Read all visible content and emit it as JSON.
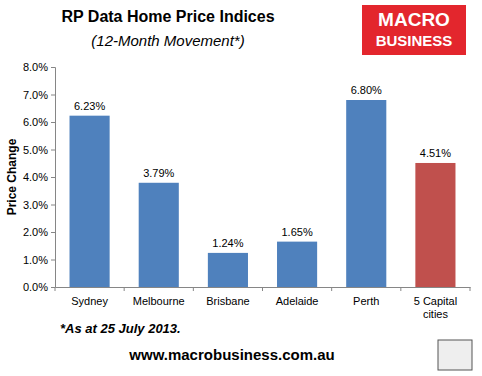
{
  "chart_data": {
    "type": "bar",
    "title": "RP Data Home Price Indices",
    "subtitle": "(12-Month Movement*)",
    "y_label": "Price Change",
    "categories": [
      "Sydney",
      "Melbourne",
      "Brisbane",
      "Adelaide",
      "Perth",
      "5 Capital cities"
    ],
    "values": [
      6.23,
      3.79,
      1.24,
      1.65,
      6.8,
      4.51
    ],
    "value_labels": [
      "6.23%",
      "3.79%",
      "1.24%",
      "1.65%",
      "6.80%",
      "4.51%"
    ],
    "colors": [
      "#4f81bd",
      "#4f81bd",
      "#4f81bd",
      "#4f81bd",
      "#4f81bd",
      "#c0504d"
    ],
    "ylim": [
      0,
      8
    ],
    "yticks": [
      {
        "value": 0,
        "label": "0.0%"
      },
      {
        "value": 1,
        "label": "1.0%"
      },
      {
        "value": 2,
        "label": "2.0%"
      },
      {
        "value": 3,
        "label": "3.0%"
      },
      {
        "value": 4,
        "label": "4.0%"
      },
      {
        "value": 5,
        "label": "5.0%"
      },
      {
        "value": 6,
        "label": "6.0%"
      },
      {
        "value": 7,
        "label": "7.0%"
      },
      {
        "value": 8,
        "label": "8.0%"
      }
    ],
    "grid": false,
    "data_labels": true,
    "logo": [
      "MACRO",
      "BUSINESS"
    ],
    "footnote": "*As at  25 July 2013.",
    "source": "www.macrobusiness.com.au"
  }
}
